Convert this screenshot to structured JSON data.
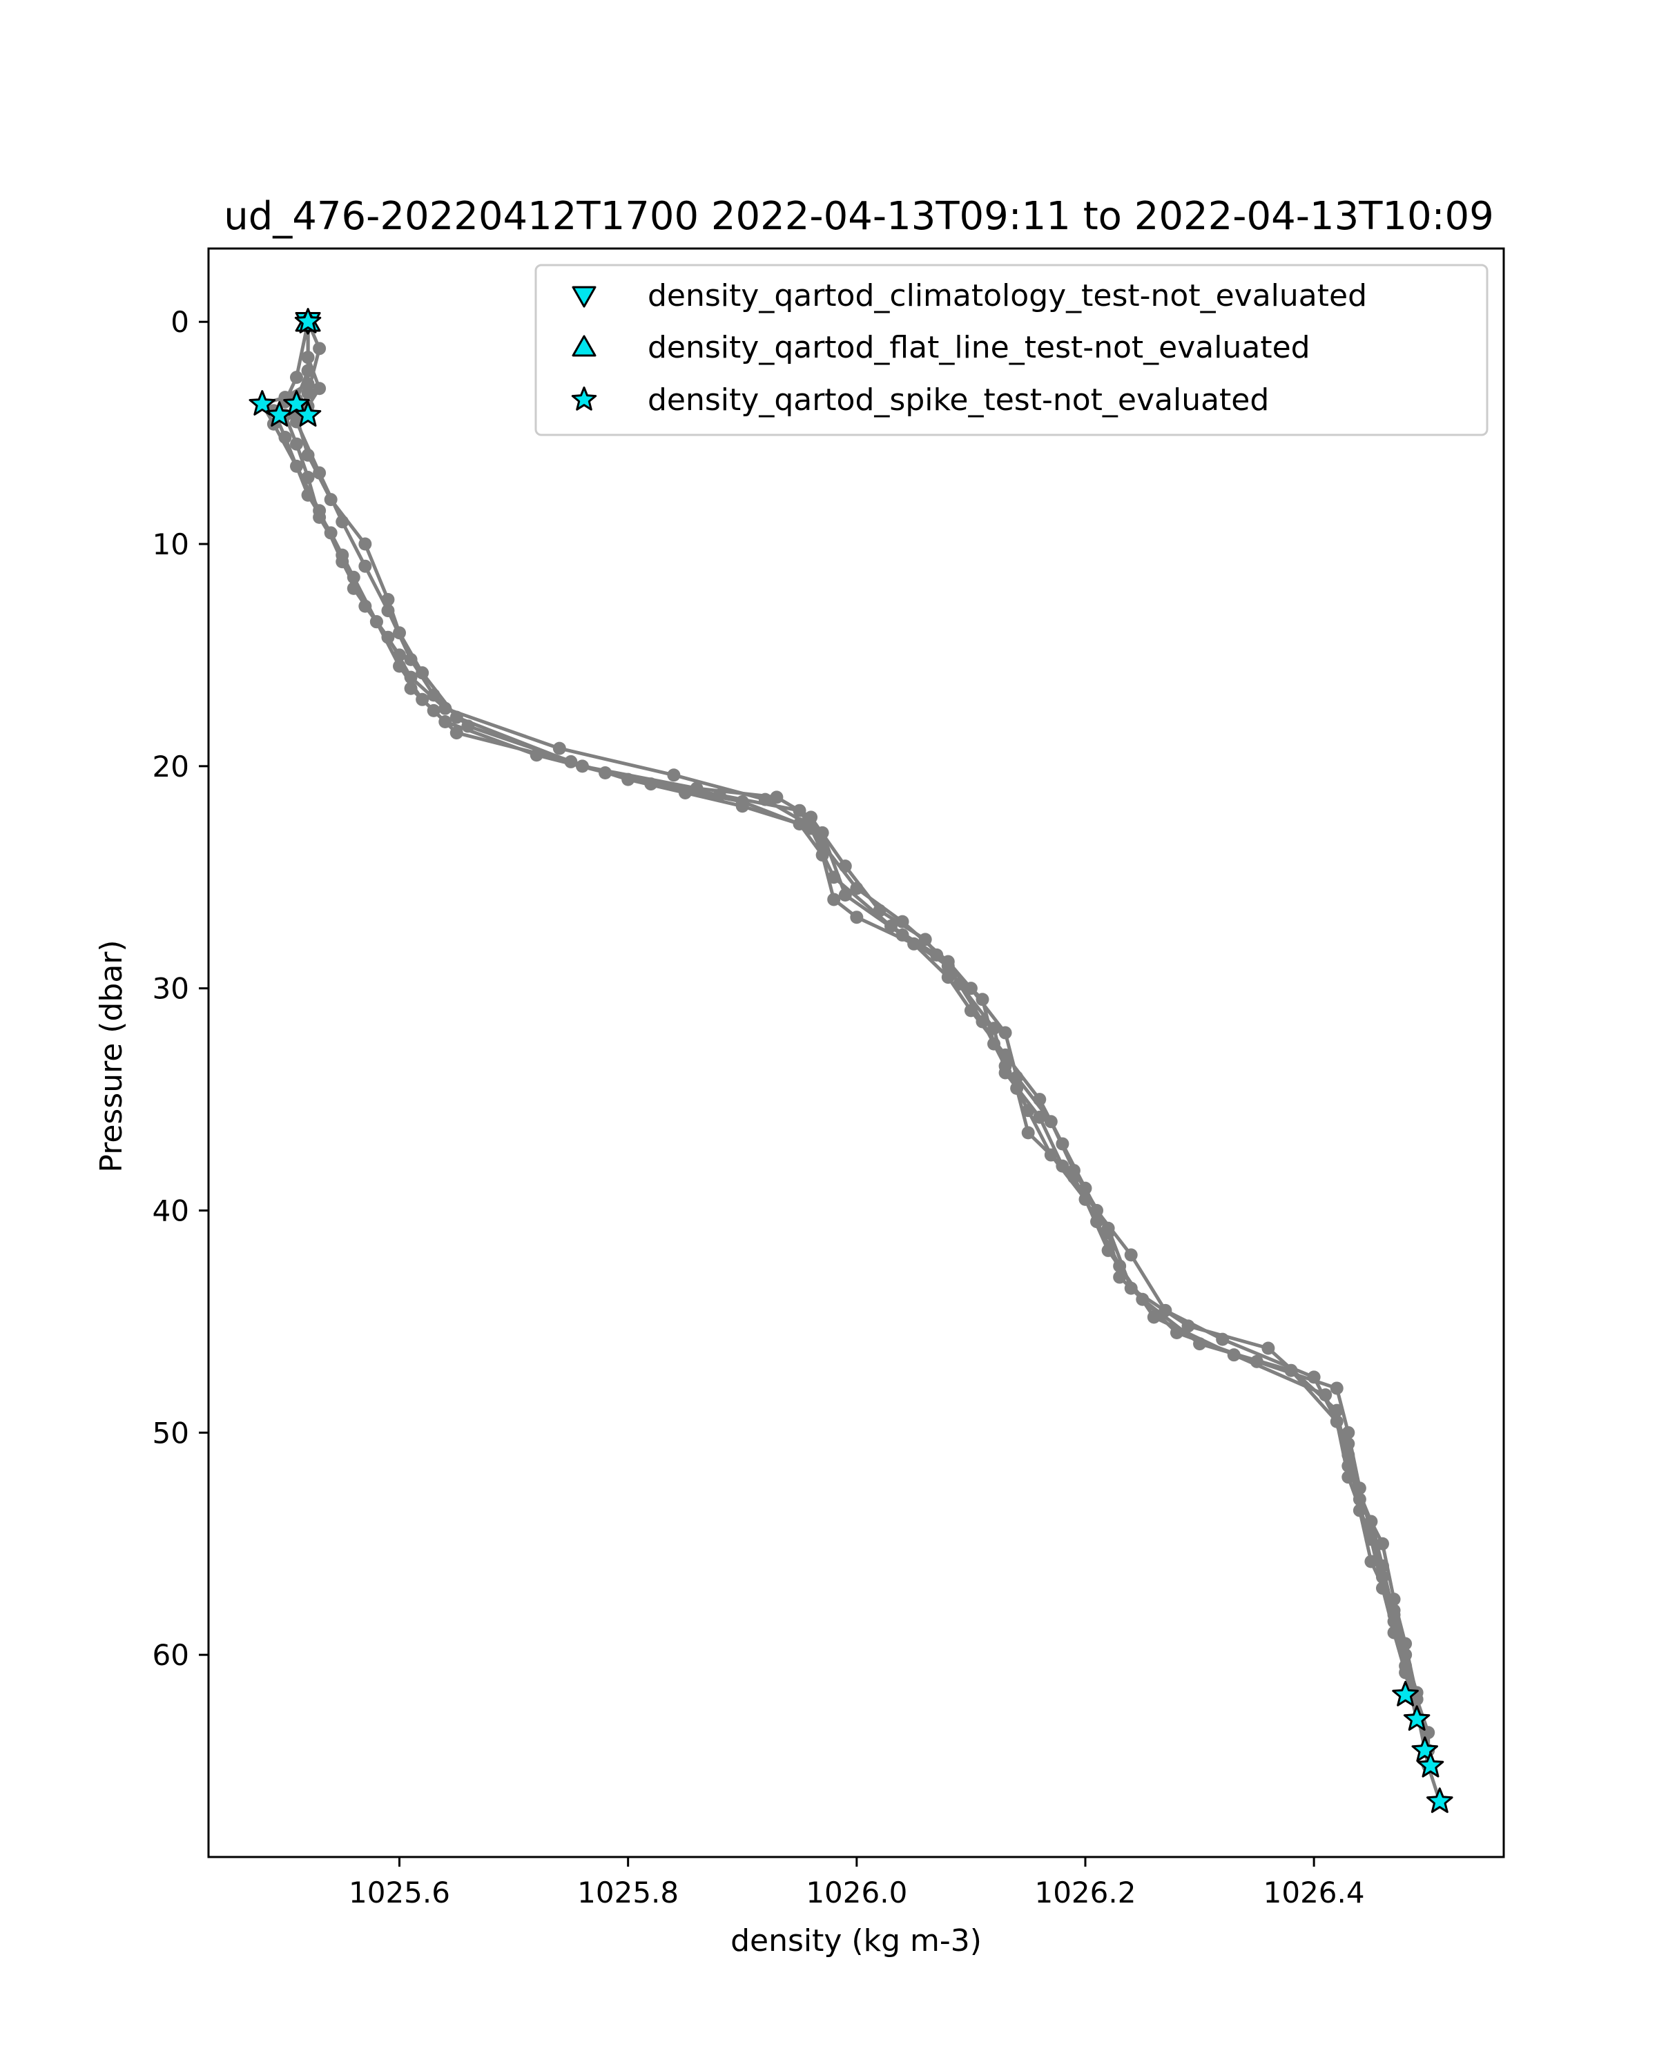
{
  "chart_data": {
    "type": "line",
    "title": "ud_476-20220412T1700 2022-04-13T09:11 to 2022-04-13T10:09",
    "xlabel": "density (kg m-3)",
    "ylabel": "Pressure (dbar)",
    "xlim": [
      1025.433,
      1026.566
    ],
    "ylim": [
      69.1,
      -3.3
    ],
    "y_inverted": true,
    "x_ticks": [
      1025.6,
      1025.8,
      1026.0,
      1026.2,
      1026.4
    ],
    "x_tick_labels": [
      "1025.6",
      "1025.8",
      "1026.0",
      "1026.2",
      "1026.4"
    ],
    "y_ticks": [
      0,
      10,
      20,
      30,
      40,
      50,
      60
    ],
    "y_tick_labels": [
      "0",
      "10",
      "20",
      "30",
      "40",
      "50",
      "60"
    ],
    "grid": false,
    "legend_placement": "upper right",
    "profile_color": "#808080",
    "marker_fill": "#00e5ee",
    "marker_edge": "#000000",
    "series": [
      {
        "x": [
          1025.52,
          1025.52,
          1025.53,
          1025.52,
          1025.5,
          1025.51,
          1025.52,
          1025.53,
          1025.55,
          1025.56,
          1025.58,
          1025.6,
          1025.61,
          1025.63,
          1025.65,
          1025.75,
          1025.8,
          1025.85,
          1025.9,
          1025.95,
          1025.97,
          1025.98,
          1026.0,
          1026.05,
          1026.08,
          1026.1,
          1026.13,
          1026.16,
          1026.18,
          1026.2,
          1026.22,
          1026.23,
          1026.28,
          1026.35,
          1026.42,
          1026.43,
          1026.44,
          1026.45,
          1026.46,
          1026.47,
          1026.48,
          1026.49,
          1026.5,
          1026.5,
          1026.51
        ],
        "y": [
          0,
          1.6,
          3.0,
          3.8,
          4.2,
          5.5,
          7.0,
          8.8,
          10.5,
          12.0,
          13.5,
          15.0,
          16.5,
          17.5,
          18.5,
          19.8,
          20.6,
          21.2,
          21.8,
          22.6,
          24.0,
          26.0,
          26.8,
          28.0,
          29.5,
          31.0,
          33.0,
          35.0,
          37.0,
          39.0,
          41.0,
          43.0,
          45.5,
          46.8,
          48.0,
          50.0,
          52.5,
          54.5,
          56.5,
          58.5,
          60.5,
          62.0,
          63.5,
          65.0,
          66.6
        ]
      },
      {
        "x": [
          1025.52,
          1025.51,
          1025.5,
          1025.49,
          1025.5,
          1025.52,
          1025.54,
          1025.56,
          1025.58,
          1025.6,
          1025.62,
          1025.64,
          1025.72,
          1025.82,
          1025.9,
          1025.96,
          1025.98,
          1026.03,
          1026.07,
          1026.11,
          1026.12,
          1026.14,
          1026.15,
          1026.19,
          1026.21,
          1026.23,
          1026.26,
          1026.33,
          1026.41,
          1026.43,
          1026.44,
          1026.45,
          1026.47,
          1026.48,
          1026.49
        ],
        "y": [
          0,
          2.5,
          3.6,
          4.0,
          5.2,
          7.8,
          9.5,
          11.5,
          13.5,
          15.5,
          17.0,
          18.0,
          19.5,
          20.8,
          21.6,
          22.8,
          25.0,
          27.2,
          28.5,
          30.5,
          32.5,
          34.5,
          36.5,
          38.5,
          40.5,
          42.5,
          44.8,
          46.5,
          48.3,
          51.0,
          53.5,
          55.8,
          58.0,
          60.0,
          61.7
        ]
      },
      {
        "x": [
          1025.52,
          1025.52,
          1025.5,
          1025.48,
          1025.49,
          1025.51,
          1025.53,
          1025.55,
          1025.57,
          1025.59,
          1025.61,
          1025.64,
          1025.74,
          1025.84,
          1025.92,
          1025.97,
          1025.99,
          1026.04,
          1026.08,
          1026.11,
          1026.13,
          1026.15,
          1026.17,
          1026.2,
          1026.22,
          1026.25,
          1026.3,
          1026.38,
          1026.42,
          1026.43,
          1026.45,
          1026.46,
          1026.47,
          1026.48,
          1026.49
        ],
        "y": [
          0,
          2.8,
          3.4,
          3.7,
          4.6,
          6.5,
          8.5,
          10.8,
          12.8,
          14.2,
          16.0,
          17.4,
          19.2,
          20.4,
          21.5,
          23.0,
          25.8,
          27.6,
          29.0,
          31.5,
          33.5,
          35.5,
          37.5,
          39.5,
          41.8,
          44.0,
          46.0,
          47.2,
          49.5,
          52.0,
          54.8,
          57.0,
          59.0,
          60.8,
          62.9
        ]
      },
      {
        "x": [
          1025.52,
          1025.52,
          1025.51,
          1025.51,
          1025.52,
          1025.54,
          1025.57,
          1025.59,
          1025.6,
          1025.62,
          1025.65,
          1025.76,
          1025.86,
          1025.93,
          1025.96,
          1025.99,
          1026.02,
          1026.06,
          1026.09,
          1026.12,
          1026.13,
          1026.16,
          1026.18,
          1026.21,
          1026.24,
          1026.27,
          1026.32,
          1026.4,
          1026.43,
          1026.44,
          1026.46,
          1026.47,
          1026.48,
          1026.5
        ],
        "y": [
          0,
          2.2,
          3.5,
          4.3,
          6.0,
          8.0,
          10.0,
          12.5,
          14.0,
          15.8,
          17.8,
          20.0,
          21.0,
          21.4,
          22.3,
          24.5,
          26.5,
          27.8,
          29.8,
          31.8,
          33.8,
          35.8,
          38.0,
          40.0,
          42.0,
          44.5,
          45.8,
          47.5,
          50.5,
          53.0,
          55.0,
          57.5,
          59.5,
          64.3
        ]
      },
      {
        "x": [
          1025.52,
          1025.53,
          1025.52,
          1025.51,
          1025.53,
          1025.55,
          1025.57,
          1025.59,
          1025.61,
          1025.63,
          1025.66,
          1025.78,
          1025.88,
          1025.95,
          1025.97,
          1026.0,
          1026.04,
          1026.08,
          1026.1,
          1026.13,
          1026.14,
          1026.17,
          1026.19,
          1026.22,
          1026.24,
          1026.29,
          1026.36,
          1026.42,
          1026.43,
          1026.45,
          1026.46,
          1026.47,
          1026.48,
          1026.5
        ],
        "y": [
          0,
          1.2,
          3.2,
          4.5,
          6.8,
          9.0,
          11.0,
          13.0,
          15.2,
          16.8,
          18.2,
          20.3,
          21.3,
          22.0,
          23.5,
          25.5,
          27.0,
          28.8,
          30.0,
          32.0,
          34.0,
          36.0,
          38.2,
          40.8,
          43.5,
          45.2,
          46.2,
          49.0,
          51.5,
          54.0,
          56.0,
          58.2,
          60.0,
          65.0
        ]
      }
    ],
    "flag_series": [
      {
        "name": "density_qartod_climatology_test-not_evaluated",
        "marker": "triangle-down",
        "x": [
          1025.52
        ],
        "y": [
          0
        ]
      },
      {
        "name": "density_qartod_flat_line_test-not_evaluated",
        "marker": "triangle-up",
        "x": [
          1025.52
        ],
        "y": [
          0
        ]
      },
      {
        "name": "density_qartod_spike_test-not_evaluated",
        "marker": "star",
        "x": [
          1025.52,
          1025.48,
          1025.495,
          1025.51,
          1025.52,
          1026.48,
          1026.49,
          1026.497,
          1026.502,
          1026.51
        ],
        "y": [
          0,
          3.7,
          4.2,
          3.7,
          4.2,
          61.8,
          62.9,
          64.3,
          65.0,
          66.6
        ]
      }
    ]
  }
}
